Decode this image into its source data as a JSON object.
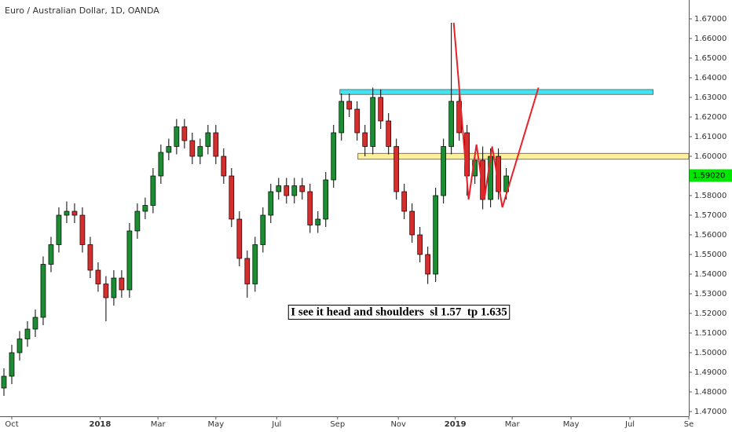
{
  "chart_data": {
    "type": "candlestick",
    "title": "Euro / Australian Dollar, 1D, OANDA",
    "up_color": "#1e8c34",
    "down_color": "#d32f2f",
    "outline_color": "#000000",
    "x": [
      -8,
      0,
      8,
      16,
      24,
      32,
      40,
      48,
      56,
      64,
      72,
      80,
      88,
      96,
      104,
      112,
      120,
      128,
      136,
      144,
      152,
      160,
      168,
      176,
      184,
      192,
      200,
      208,
      216,
      224,
      232,
      240,
      248,
      256,
      264,
      272,
      280,
      288,
      296,
      304,
      312,
      320,
      328,
      336,
      344,
      352,
      360,
      368,
      376,
      384,
      392,
      400,
      408,
      416,
      424,
      432,
      440,
      448,
      456,
      464,
      472,
      480,
      488,
      496,
      504
    ],
    "open": [
      1.482,
      1.488,
      1.5,
      1.507,
      1.512,
      1.518,
      1.545,
      1.555,
      1.57,
      1.572,
      1.57,
      1.555,
      1.542,
      1.535,
      1.528,
      1.538,
      1.532,
      1.562,
      1.572,
      1.575,
      1.59,
      1.602,
      1.605,
      1.615,
      1.608,
      1.6,
      1.605,
      1.612,
      1.6,
      1.59,
      1.568,
      1.548,
      1.535,
      1.555,
      1.57,
      1.582,
      1.585,
      1.58,
      1.585,
      1.582,
      1.565,
      1.568,
      1.588,
      1.612,
      1.628,
      1.624,
      1.612,
      1.605,
      1.63,
      1.618,
      1.605,
      1.582,
      1.572,
      1.56,
      1.55,
      1.54,
      1.58,
      1.605,
      1.628,
      1.612,
      1.59,
      1.598,
      1.578,
      1.6,
      1.582
    ],
    "high": [
      1.492,
      1.504,
      1.511,
      1.516,
      1.522,
      1.549,
      1.559,
      1.574,
      1.577,
      1.576,
      1.574,
      1.559,
      1.546,
      1.539,
      1.542,
      1.542,
      1.566,
      1.576,
      1.579,
      1.594,
      1.606,
      1.609,
      1.619,
      1.619,
      1.612,
      1.609,
      1.616,
      1.616,
      1.604,
      1.594,
      1.572,
      1.552,
      1.559,
      1.574,
      1.586,
      1.589,
      1.589,
      1.589,
      1.589,
      1.586,
      1.572,
      1.592,
      1.616,
      1.632,
      1.632,
      1.628,
      1.616,
      1.635,
      1.634,
      1.622,
      1.609,
      1.586,
      1.576,
      1.564,
      1.554,
      1.584,
      1.609,
      1.668,
      1.632,
      1.616,
      1.602,
      1.605,
      1.604,
      1.604,
      1.594
    ],
    "low": [
      1.478,
      1.484,
      1.496,
      1.503,
      1.508,
      1.514,
      1.541,
      1.551,
      1.566,
      1.566,
      1.551,
      1.538,
      1.531,
      1.516,
      1.524,
      1.528,
      1.528,
      1.558,
      1.568,
      1.571,
      1.586,
      1.598,
      1.601,
      1.604,
      1.596,
      1.596,
      1.601,
      1.596,
      1.586,
      1.564,
      1.544,
      1.528,
      1.531,
      1.551,
      1.566,
      1.578,
      1.576,
      1.576,
      1.578,
      1.561,
      1.561,
      1.564,
      1.584,
      1.608,
      1.62,
      1.608,
      1.6,
      1.601,
      1.614,
      1.601,
      1.578,
      1.568,
      1.556,
      1.546,
      1.535,
      1.536,
      1.576,
      1.601,
      1.608,
      1.58,
      1.586,
      1.573,
      1.574,
      1.578,
      1.578
    ],
    "close": [
      1.488,
      1.5,
      1.507,
      1.512,
      1.518,
      1.545,
      1.555,
      1.57,
      1.572,
      1.57,
      1.555,
      1.542,
      1.535,
      1.528,
      1.538,
      1.532,
      1.562,
      1.572,
      1.575,
      1.59,
      1.602,
      1.605,
      1.615,
      1.608,
      1.6,
      1.605,
      1.612,
      1.6,
      1.59,
      1.568,
      1.548,
      1.535,
      1.555,
      1.57,
      1.582,
      1.585,
      1.58,
      1.585,
      1.582,
      1.565,
      1.568,
      1.588,
      1.612,
      1.628,
      1.624,
      1.612,
      1.605,
      1.63,
      1.618,
      1.605,
      1.582,
      1.572,
      1.56,
      1.55,
      1.54,
      1.58,
      1.605,
      1.628,
      1.612,
      1.59,
      1.598,
      1.578,
      1.6,
      1.582,
      1.59
    ],
    "xlim": [
      -12,
      690
    ],
    "ylim": [
      1.4676,
      1.6796
    ],
    "xticks": [
      {
        "value": 0,
        "label": "Oct"
      },
      {
        "value": 90,
        "label": "2018"
      },
      {
        "value": 149,
        "label": "Mar"
      },
      {
        "value": 208,
        "label": "May"
      },
      {
        "value": 270,
        "label": "Jul"
      },
      {
        "value": 332,
        "label": "Sep"
      },
      {
        "value": 394,
        "label": "Nov"
      },
      {
        "value": 452,
        "label": "2019"
      },
      {
        "value": 510,
        "label": "Mar"
      },
      {
        "value": 570,
        "label": "May"
      },
      {
        "value": 630,
        "label": "Jul"
      },
      {
        "value": 690,
        "label": "Se"
      }
    ],
    "yticks": [
      {
        "value": 1.47,
        "label": "1.47000"
      },
      {
        "value": 1.48,
        "label": "1.48000"
      },
      {
        "value": 1.49,
        "label": "1.49000"
      },
      {
        "value": 1.5,
        "label": "1.50000"
      },
      {
        "value": 1.51,
        "label": "1.51000"
      },
      {
        "value": 1.52,
        "label": "1.52000"
      },
      {
        "value": 1.53,
        "label": "1.53000"
      },
      {
        "value": 1.54,
        "label": "1.54000"
      },
      {
        "value": 1.55,
        "label": "1.55000"
      },
      {
        "value": 1.56,
        "label": "1.56000"
      },
      {
        "value": 1.57,
        "label": "1.57000"
      },
      {
        "value": 1.58,
        "label": "1.58000"
      },
      {
        "value": 1.59,
        "label": "1.59000"
      },
      {
        "value": 1.6,
        "label": "1.60000"
      },
      {
        "value": 1.61,
        "label": "1.61000"
      },
      {
        "value": 1.62,
        "label": "1.62000"
      },
      {
        "value": 1.63,
        "label": "1.63000"
      },
      {
        "value": 1.64,
        "label": "1.64000"
      },
      {
        "value": 1.65,
        "label": "1.65000"
      },
      {
        "value": 1.66,
        "label": "1.66000"
      },
      {
        "value": 1.67,
        "label": "1.67000"
      }
    ],
    "last_price": {
      "value": 1.5902,
      "label": "1.59020",
      "color": "#00e600"
    },
    "zones": [
      {
        "x": [
          334.4,
          653.6
        ],
        "y": [
          1.6315,
          1.634
        ],
        "color": "#3fe6f2"
      },
      {
        "x": [
          352.8,
          690
        ],
        "y": [
          1.5985,
          1.6015
        ],
        "color": "#fff09a"
      }
    ],
    "projection": {
      "color": "#e8222a",
      "x": [
        450.4,
        465.6,
        473.6,
        481.6,
        489.6,
        500,
        536.8
      ],
      "y": [
        1.668,
        1.578,
        1.606,
        1.578,
        1.605,
        1.574,
        1.635
      ]
    },
    "annotation": "I see it head and shoulders  sl 1.57  tp 1.635"
  }
}
